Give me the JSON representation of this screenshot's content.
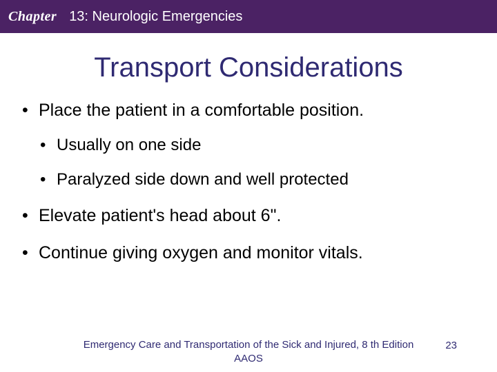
{
  "header": {
    "chapter_label": "Chapter",
    "chapter_title": "13: Neurologic Emergencies",
    "bar_color": "#4b2264",
    "text_color": "#ffffff"
  },
  "title": {
    "text": "Transport Considerations",
    "color": "#2f2a72",
    "fontsize": 40
  },
  "bullets": [
    {
      "text": "Place the patient in a comfortable position.",
      "children": [
        {
          "text": "Usually on one side"
        },
        {
          "text": "Paralyzed side down and well protected"
        }
      ]
    },
    {
      "text": "Elevate patient's head about 6\"."
    },
    {
      "text": "Continue giving oxygen and monitor vitals."
    }
  ],
  "footer": {
    "text_line1": "Emergency Care and Transportation of the Sick and Injured, 8 th Edition",
    "text_line2": "AAOS",
    "color": "#2f2a72",
    "page_number": "23"
  },
  "styling": {
    "background_color": "#ffffff",
    "body_text_color": "#000000",
    "body_fontsize": 25,
    "sub_fontsize": 24,
    "footer_fontsize": 15,
    "slide_width": 720,
    "slide_height": 540
  }
}
